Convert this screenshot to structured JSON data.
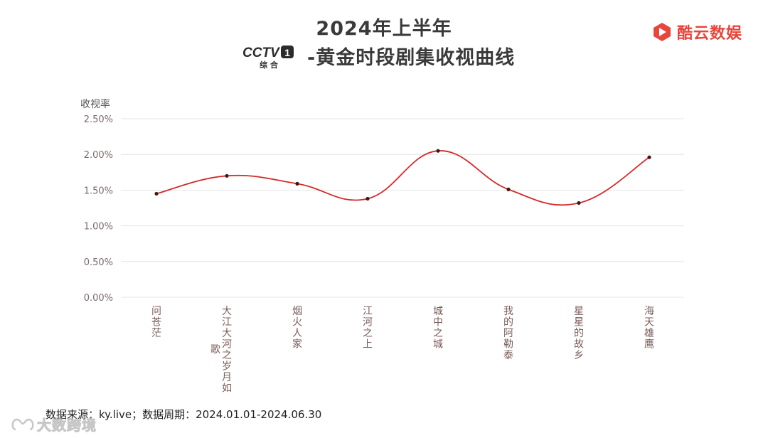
{
  "header": {
    "title_line1": "2024年上半年",
    "title_line2": "-黄金时段剧集收视曲线",
    "channel_logo": {
      "text": "CCTV",
      "number": "1",
      "sub": "综 合"
    }
  },
  "brand": {
    "name": "酷云数娱",
    "color": "#e8453c"
  },
  "footer": {
    "source": "数据来源：ky.live；数据周期：2024.01.01-2024.06.30"
  },
  "watermark": {
    "text": "大数跨境"
  },
  "chart_data": {
    "type": "line",
    "ylabel": "收视率",
    "y_ticks": [
      "0.00%",
      "0.50%",
      "1.00%",
      "1.50%",
      "2.00%",
      "2.50%"
    ],
    "ylim": [
      0,
      2.5
    ],
    "grid": true,
    "line_color": "#d42a2a",
    "categories": [
      "问苍茫",
      "大江大河之岁月如歌",
      "烟火人家",
      "江河之上",
      "城中之城",
      "我的阿勒泰",
      "星星的故乡",
      "海天雄鹰"
    ],
    "series": [
      {
        "values": [
          1.45,
          1.7,
          1.59,
          1.38,
          2.05,
          1.51,
          1.32,
          1.96
        ]
      }
    ]
  }
}
